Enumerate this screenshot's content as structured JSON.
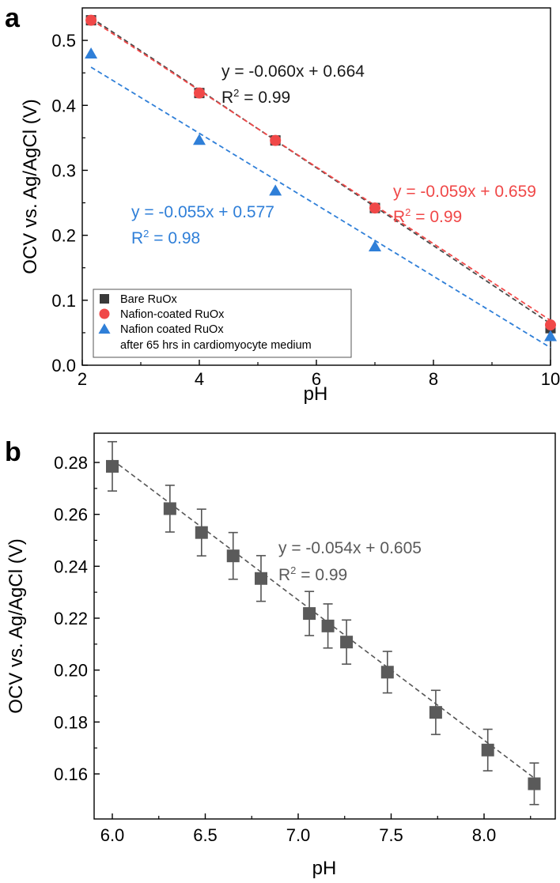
{
  "panels": [
    {
      "letter": "a",
      "xlabel": "pH",
      "ylabel": "OCV vs. Ag/AgCl (V)",
      "equations": [
        {
          "id": "bare",
          "line1": "y = -0.060x + 0.664",
          "r2_prefix": "R",
          "r2_sup": "2",
          "r2_suffix": " = 0.99",
          "color": "#1a1a1a"
        },
        {
          "id": "nafion",
          "line1": "y = -0.059x + 0.659",
          "r2_prefix": "R",
          "r2_sup": "2",
          "r2_suffix": " = 0.99",
          "color": "#f04848"
        },
        {
          "id": "aged",
          "line1": "y = -0.055x + 0.577",
          "r2_prefix": "R",
          "r2_sup": "2",
          "r2_suffix": " = 0.98",
          "color": "#2f7fd8"
        }
      ],
      "legend": [
        {
          "label": "Bare RuOx",
          "marker": "square",
          "color": "#3a3a3a"
        },
        {
          "label": "Nafion-coated RuOx",
          "marker": "circle",
          "color": "#f04848"
        },
        {
          "label": "Nafion coated RuOx",
          "marker": "triangle",
          "color": "#2f7fd8"
        },
        {
          "label": "after 65 hrs in cardiomyocyte medium",
          "marker": "none",
          "color": "#000000"
        }
      ]
    },
    {
      "letter": "b",
      "xlabel": "pH",
      "ylabel": "OCV vs. Ag/AgCl (V)",
      "equations": [
        {
          "id": "bare-b",
          "line1": "y = -0.054x + 0.605",
          "r2_prefix": "R",
          "r2_sup": "2",
          "r2_suffix": " = 0.99",
          "color": "#5a5a5a"
        }
      ],
      "legend": []
    }
  ],
  "chart_data": [
    {
      "type": "scatter",
      "title": "",
      "xlabel": "pH",
      "ylabel": "OCV vs. Ag/AgCl (V)",
      "xlim": [
        2,
        10
      ],
      "ylim": [
        0.0,
        0.55
      ],
      "xticks": [
        "2",
        "4",
        "6",
        "8",
        "10"
      ],
      "yticks": [
        "0.0",
        "0.1",
        "0.2",
        "0.3",
        "0.4",
        "0.5"
      ],
      "grid": false,
      "legend_position": "bottom-left",
      "series": [
        {
          "name": "Bare RuOx",
          "marker": "square",
          "color": "#3a3a3a",
          "x": [
            2.15,
            4.0,
            5.3,
            7.0,
            10.0
          ],
          "y": [
            0.531,
            0.419,
            0.346,
            0.242,
            0.057
          ],
          "fit": {
            "slope": -0.06,
            "intercept": 0.664
          }
        },
        {
          "name": "Nafion-coated RuOx",
          "marker": "circle",
          "color": "#f04848",
          "x": [
            2.15,
            4.0,
            5.3,
            7.0,
            10.0
          ],
          "y": [
            0.531,
            0.419,
            0.346,
            0.242,
            0.062
          ],
          "fit": {
            "slope": -0.059,
            "intercept": 0.659
          }
        },
        {
          "name": "Nafion coated RuOx after 65 hrs in cardiomyocyte medium",
          "marker": "triangle",
          "color": "#2f7fd8",
          "x": [
            2.15,
            4.0,
            5.3,
            7.0,
            10.0
          ],
          "y": [
            0.479,
            0.346,
            0.268,
            0.182,
            0.044
          ],
          "fit": {
            "slope": -0.055,
            "intercept": 0.577
          }
        }
      ]
    },
    {
      "type": "scatter",
      "title": "",
      "xlabel": "pH",
      "ylabel": "OCV vs. Ag/AgCl (V)",
      "xlim": [
        5.9,
        8.35
      ],
      "ylim": [
        0.15,
        0.285
      ],
      "xticks": [
        "6.0",
        "6.5",
        "7.0",
        "7.5",
        "8.0"
      ],
      "yticks": [
        "0.16",
        "0.18",
        "0.20",
        "0.22",
        "0.24",
        "0.26",
        "0.28"
      ],
      "grid": false,
      "series": [
        {
          "name": "",
          "marker": "square",
          "color": "#5a5a5a",
          "x": [
            6.0,
            6.31,
            6.48,
            6.65,
            6.8,
            7.06,
            7.16,
            7.26,
            7.48,
            7.74,
            8.02,
            8.27
          ],
          "y": [
            0.2785,
            0.2622,
            0.253,
            0.244,
            0.2353,
            0.2218,
            0.217,
            0.2108,
            0.1992,
            0.1837,
            0.1692,
            0.1562
          ],
          "err": [
            0.0095,
            0.009,
            0.009,
            0.009,
            0.0088,
            0.0085,
            0.0085,
            0.0085,
            0.008,
            0.0085,
            0.008,
            0.008
          ],
          "fit": {
            "slope": -0.054,
            "intercept": 0.605
          }
        }
      ]
    }
  ]
}
